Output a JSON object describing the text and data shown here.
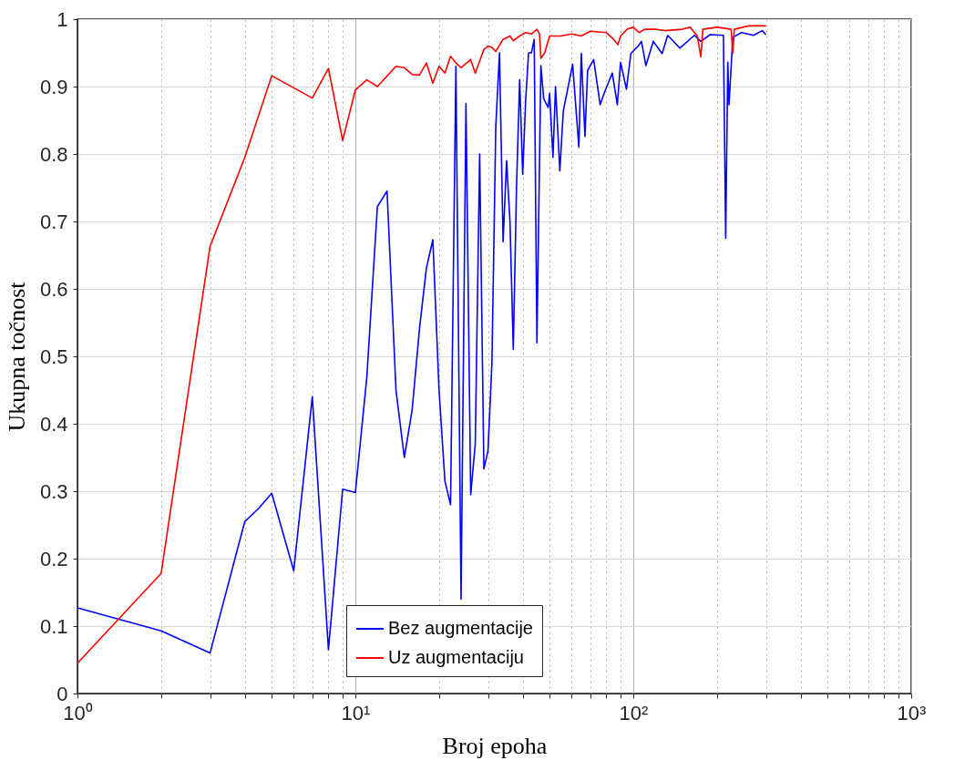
{
  "chart_data": {
    "type": "line",
    "xlabel": "Broj epoha",
    "ylabel": "Ukupna točnost",
    "log": "x",
    "grid": true,
    "legend": "bottom",
    "line_style": "solid",
    "marker": "none",
    "xlim": [
      1,
      1000
    ],
    "ylim": [
      0,
      1
    ],
    "xticks": [
      {
        "value": 1,
        "label": "10⁰"
      },
      {
        "value": 2,
        "label": null
      },
      {
        "value": 3,
        "label": null
      },
      {
        "value": 4,
        "label": null
      },
      {
        "value": 5,
        "label": null
      },
      {
        "value": 6,
        "label": null
      },
      {
        "value": 7,
        "label": null
      },
      {
        "value": 8,
        "label": null
      },
      {
        "value": 9,
        "label": null
      },
      {
        "value": 10,
        "label": "10¹"
      },
      {
        "value": 20,
        "label": null
      },
      {
        "value": 30,
        "label": null
      },
      {
        "value": 40,
        "label": null
      },
      {
        "value": 50,
        "label": null
      },
      {
        "value": 60,
        "label": null
      },
      {
        "value": 70,
        "label": null
      },
      {
        "value": 80,
        "label": null
      },
      {
        "value": 90,
        "label": null
      },
      {
        "value": 100,
        "label": "10²"
      },
      {
        "value": 200,
        "label": null
      },
      {
        "value": 300,
        "label": null
      },
      {
        "value": 400,
        "label": null
      },
      {
        "value": 500,
        "label": null
      },
      {
        "value": 600,
        "label": null
      },
      {
        "value": 700,
        "label": null
      },
      {
        "value": 800,
        "label": null
      },
      {
        "value": 900,
        "label": null
      },
      {
        "value": 1000,
        "label": "10³"
      }
    ],
    "yticks": [
      0,
      0.1,
      0.2,
      0.3,
      0.4,
      0.5,
      0.6,
      0.7,
      0.8,
      0.9,
      1
    ],
    "series": [
      {
        "name": "Bez augmentacije",
        "color": "#0000ff",
        "x": [
          1,
          2,
          3,
          4,
          4.5,
          5,
          6,
          7,
          8,
          9,
          10,
          11,
          12,
          13,
          14,
          15,
          16,
          17,
          18,
          19,
          20,
          21,
          22,
          23,
          24,
          25,
          26,
          27,
          28,
          29,
          30,
          31,
          32,
          33,
          34,
          35,
          36,
          37,
          38,
          39,
          40,
          41,
          42,
          43,
          44,
          45,
          46.5,
          47.6,
          49.4,
          50,
          51.4,
          52.5,
          54.4,
          56,
          60.5,
          63.7,
          65,
          67,
          68.5,
          72,
          76,
          79,
          84,
          87.6,
          90,
          94.5,
          98,
          104,
          107,
          111,
          118,
          127,
          133,
          147,
          166,
          175,
          189,
          211,
          215,
          218.8,
          221,
          228,
          245,
          271,
          291,
          300
        ],
        "values": [
          0.127,
          0.093,
          0.06,
          0.255,
          0.275,
          0.297,
          0.182,
          0.44,
          0.065,
          0.303,
          0.298,
          0.47,
          0.722,
          0.745,
          0.45,
          0.35,
          0.42,
          0.54,
          0.63,
          0.673,
          0.45,
          0.315,
          0.28,
          0.93,
          0.14,
          0.875,
          0.295,
          0.37,
          0.8,
          0.333,
          0.36,
          0.49,
          0.84,
          0.95,
          0.67,
          0.79,
          0.7,
          0.51,
          0.75,
          0.91,
          0.77,
          0.88,
          0.95,
          0.95,
          0.97,
          0.52,
          0.931,
          0.882,
          0.869,
          0.89,
          0.795,
          0.9,
          0.775,
          0.864,
          0.933,
          0.81,
          0.949,
          0.826,
          0.924,
          0.94,
          0.873,
          0.893,
          0.92,
          0.873,
          0.936,
          0.896,
          0.949,
          0.96,
          0.967,
          0.931,
          0.967,
          0.949,
          0.976,
          0.957,
          0.976,
          0.967,
          0.977,
          0.976,
          0.675,
          0.936,
          0.873,
          0.973,
          0.98,
          0.976,
          0.983,
          0.977
        ]
      },
      {
        "name": "Uz augmentaciju",
        "color": "#ff0000",
        "x": [
          1,
          2,
          3,
          4,
          5,
          7,
          8,
          9,
          10,
          11,
          12,
          14,
          15,
          16,
          17,
          18,
          19,
          20,
          21,
          22,
          23,
          24,
          26,
          27,
          29,
          30,
          31,
          32,
          34,
          36,
          37,
          39,
          41,
          43,
          45,
          46,
          46.5,
          48,
          50,
          55,
          60,
          65,
          70,
          80,
          85,
          88,
          90,
          95,
          100,
          105,
          110,
          120,
          130,
          150,
          160,
          170,
          175,
          178,
          200,
          225,
          228,
          231,
          260,
          300
        ],
        "values": [
          0.045,
          0.178,
          0.663,
          0.795,
          0.916,
          0.883,
          0.927,
          0.82,
          0.895,
          0.91,
          0.9,
          0.93,
          0.928,
          0.918,
          0.917,
          0.935,
          0.905,
          0.93,
          0.92,
          0.945,
          0.935,
          0.928,
          0.94,
          0.92,
          0.955,
          0.96,
          0.958,
          0.952,
          0.97,
          0.975,
          0.968,
          0.975,
          0.98,
          0.978,
          0.985,
          0.978,
          0.942,
          0.95,
          0.975,
          0.975,
          0.978,
          0.975,
          0.982,
          0.98,
          0.97,
          0.962,
          0.975,
          0.985,
          0.988,
          0.98,
          0.985,
          0.985,
          0.983,
          0.985,
          0.988,
          0.975,
          0.944,
          0.985,
          0.988,
          0.985,
          0.949,
          0.985,
          0.99,
          0.99
        ]
      }
    ]
  }
}
